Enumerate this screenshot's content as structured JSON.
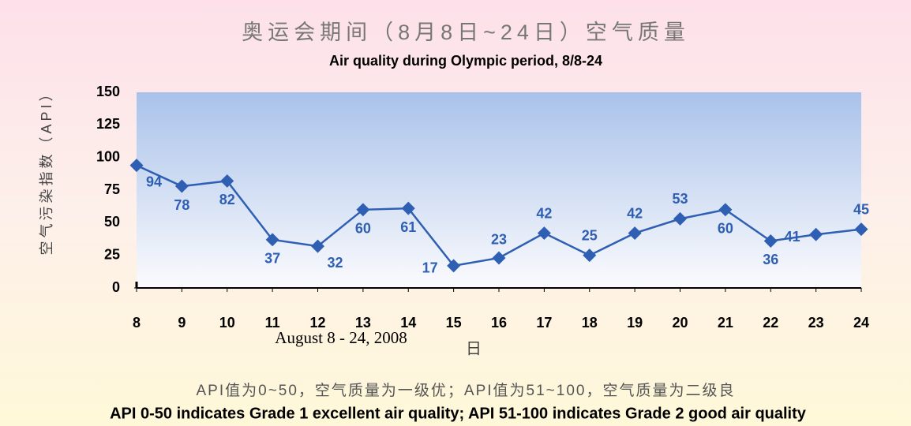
{
  "chart_data": {
    "type": "line",
    "title": "奥运会期间（8月8日~24日）空气质量",
    "subtitle": "Air quality during Olympic period, 8/8-24",
    "y_label": "空气污染指数（API）",
    "x_label": "日",
    "annotation": "August 8 - 24, 2008",
    "notes": [
      "API值为0~50，空气质量为一级优；API值为51~100，空气质量为二级良",
      "API 0-50 indicates Grade 1 excellent air quality; API 51-100 indicates Grade 2 good air quality"
    ],
    "categories": [
      "8",
      "9",
      "10",
      "11",
      "12",
      "13",
      "14",
      "15",
      "16",
      "17",
      "18",
      "19",
      "20",
      "21",
      "22",
      "23",
      "24"
    ],
    "series": [
      {
        "name": "API",
        "color": "#2f5fb3",
        "values": [
          94,
          78,
          82,
          37,
          32,
          60,
          61,
          17,
          23,
          42,
          25,
          42,
          53,
          60,
          36,
          41,
          45
        ]
      }
    ],
    "ylim": [
      0,
      150
    ],
    "yticks": [
      0,
      25,
      50,
      75,
      100,
      125,
      150
    ]
  }
}
